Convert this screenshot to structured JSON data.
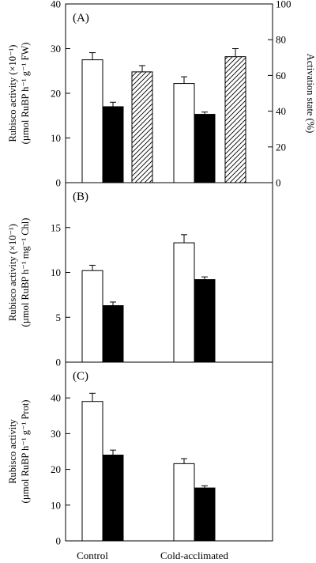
{
  "chart_data": [
    {
      "panel": "(A)",
      "type": "bar",
      "categories": [
        "Control",
        "Cold-acclimated"
      ],
      "ylabel_lines": [
        "Rubisco activity (×10⁻¹)",
        "(µmol RuBP h⁻¹ g⁻¹ FW)"
      ],
      "ylim": [
        0,
        40
      ],
      "yticks": [
        0,
        10,
        20,
        30,
        40
      ],
      "y2label": "Activation state (%)",
      "y2lim": [
        0,
        100
      ],
      "y2ticks": [
        0,
        20,
        40,
        60,
        80,
        100
      ],
      "series": [
        {
          "style": "open",
          "axis": "left",
          "values": [
            27.5,
            22.2
          ],
          "errors": [
            1.6,
            1.5
          ]
        },
        {
          "style": "filled",
          "axis": "left",
          "values": [
            17.0,
            15.3
          ],
          "errors": [
            1.0,
            0.5
          ]
        },
        {
          "style": "hatched",
          "axis": "right",
          "values": [
            62,
            70.5
          ],
          "errors": [
            3.5,
            4.5
          ]
        }
      ]
    },
    {
      "panel": "(B)",
      "type": "bar",
      "categories": [
        "Control",
        "Cold-acclimated"
      ],
      "ylabel_lines": [
        "Rubisco activity (×10⁻¹)",
        "(µmol RuBP h⁻¹ mg⁻¹ Chl)"
      ],
      "ylim": [
        0,
        20
      ],
      "yticks": [
        0,
        5,
        10,
        15
      ],
      "series": [
        {
          "style": "open",
          "values": [
            10.2,
            13.3
          ],
          "errors": [
            0.6,
            0.9
          ]
        },
        {
          "style": "filled",
          "values": [
            6.3,
            9.2
          ],
          "errors": [
            0.4,
            0.3
          ]
        }
      ]
    },
    {
      "panel": "(C)",
      "type": "bar",
      "categories": [
        "Control",
        "Cold-acclimated"
      ],
      "ylabel_lines": [
        "Rubisco activity",
        "(µmol RuBP h⁻¹ g⁻¹ Prot)"
      ],
      "ylim": [
        0,
        50
      ],
      "yticks": [
        0,
        10,
        20,
        30,
        40
      ],
      "series": [
        {
          "style": "open",
          "values": [
            39.0,
            21.6
          ],
          "errors": [
            2.3,
            1.4
          ]
        },
        {
          "style": "filled",
          "values": [
            24.0,
            14.8
          ],
          "errors": [
            1.4,
            0.6
          ]
        }
      ]
    }
  ]
}
